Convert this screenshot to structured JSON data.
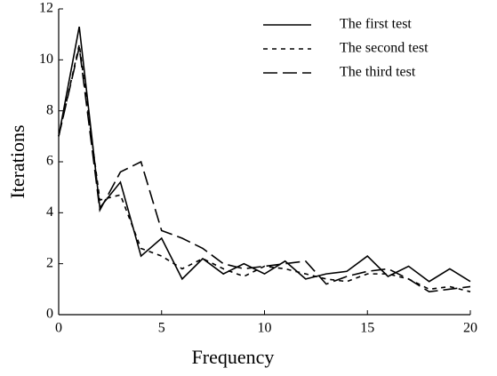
{
  "chart_data": {
    "type": "line",
    "xlabel": "Frequency",
    "ylabel": "Iterations",
    "x": [
      0,
      1,
      2,
      3,
      4,
      5,
      6,
      7,
      8,
      9,
      10,
      11,
      12,
      13,
      14,
      15,
      16,
      17,
      18,
      19,
      20
    ],
    "series": [
      {
        "name": "The first test",
        "color": "#000000",
        "dash": "none",
        "values": [
          7,
          11.3,
          4.2,
          5.2,
          2.3,
          3.0,
          1.4,
          2.2,
          1.6,
          2.0,
          1.6,
          2.1,
          1.4,
          1.6,
          1.7,
          2.3,
          1.5,
          1.9,
          1.3,
          1.8,
          1.3
        ]
      },
      {
        "name": "The second test",
        "color": "#000000",
        "dash": "5,5",
        "values": [
          7,
          10.6,
          4.5,
          4.7,
          2.6,
          2.3,
          1.8,
          2.2,
          1.8,
          1.5,
          1.9,
          1.8,
          1.6,
          1.4,
          1.3,
          1.6,
          1.6,
          1.4,
          1.0,
          1.1,
          0.9
        ]
      },
      {
        "name": "The third test",
        "color": "#000000",
        "dash": "16,6",
        "values": [
          7,
          10.5,
          4.1,
          5.6,
          6.0,
          3.3,
          3.0,
          2.6,
          2.0,
          1.8,
          1.9,
          2.0,
          2.1,
          1.2,
          1.5,
          1.7,
          1.8,
          1.4,
          0.9,
          1.0,
          1.1
        ]
      }
    ],
    "xlim": [
      0,
      20
    ],
    "ylim": [
      0,
      12
    ],
    "xticks": [
      0,
      5,
      10,
      15,
      20
    ],
    "yticks": [
      0,
      2,
      4,
      6,
      8,
      10,
      12
    ],
    "legend": "upper right"
  }
}
